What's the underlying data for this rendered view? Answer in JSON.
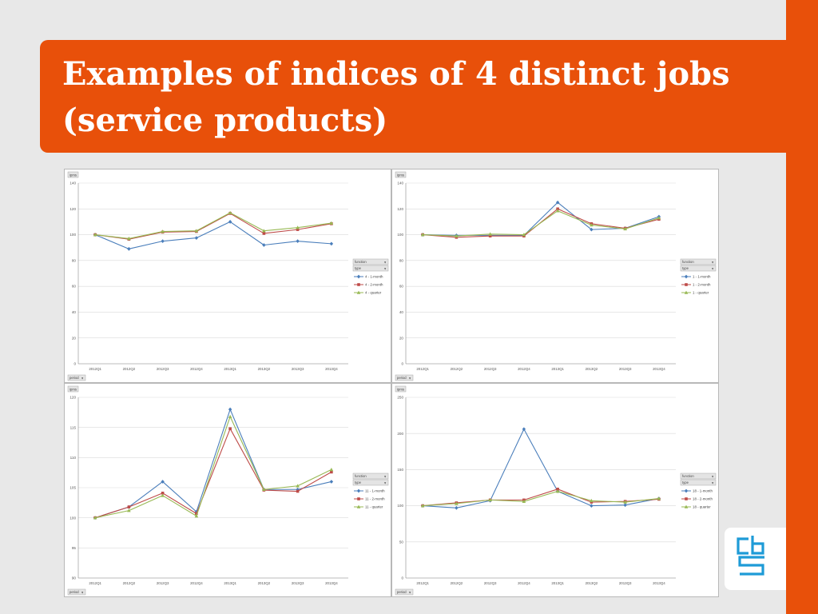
{
  "slide": {
    "title_line1": "Examples of indices of 4 distinct jobs",
    "title_line2": "(service products)",
    "brand_color": "#e8500a",
    "logo": "cbs-logo",
    "logo_color": "#1e9bd7"
  },
  "pivot": {
    "field_label": "ipms",
    "filter_function": "function",
    "filter_type": "type",
    "period_button": "period"
  },
  "chart_data": [
    {
      "type": "line",
      "categories": [
        "2012Q1",
        "2012Q2",
        "2012Q3",
        "2012Q4",
        "2013Q1",
        "2013Q2",
        "2013Q3",
        "2013Q4"
      ],
      "ylim": [
        0,
        140
      ],
      "yticks": [
        0,
        20,
        40,
        60,
        80,
        100,
        120,
        140
      ],
      "grid": true,
      "legend_position": "right",
      "series": [
        {
          "name": "4 - 1-month",
          "color": "#4a7ebb",
          "marker": "diamond",
          "values": [
            100,
            89,
            95,
            97.5,
            110,
            92,
            95,
            93
          ]
        },
        {
          "name": "4 - 2-month",
          "color": "#be4b48",
          "marker": "square",
          "values": [
            100,
            96.5,
            102,
            102.5,
            116.5,
            101,
            104,
            108.5
          ]
        },
        {
          "name": "4 - quarter",
          "color": "#98b954",
          "marker": "triangle",
          "values": [
            100,
            97,
            102.5,
            103,
            117,
            103,
            105.5,
            109
          ]
        }
      ]
    },
    {
      "type": "line",
      "categories": [
        "2012Q1",
        "2012Q2",
        "2012Q3",
        "2012Q4",
        "2013Q1",
        "2013Q2",
        "2013Q3",
        "2013Q4"
      ],
      "ylim": [
        0,
        140
      ],
      "yticks": [
        0,
        20,
        40,
        60,
        80,
        100,
        120,
        140
      ],
      "grid": true,
      "legend_position": "right",
      "series": [
        {
          "name": "1 - 1-month",
          "color": "#4a7ebb",
          "marker": "diamond",
          "values": [
            100,
            99.5,
            99.5,
            99.5,
            125,
            104,
            105,
            114
          ]
        },
        {
          "name": "1 - 2-month",
          "color": "#be4b48",
          "marker": "square",
          "values": [
            100,
            98,
            99,
            99,
            120,
            108.5,
            105,
            112
          ]
        },
        {
          "name": "1 - quarter",
          "color": "#98b954",
          "marker": "triangle",
          "values": [
            100,
            99,
            100.5,
            100,
            118.5,
            107.5,
            104.5,
            113
          ]
        }
      ]
    },
    {
      "type": "line",
      "categories": [
        "2012Q1",
        "2012Q2",
        "2012Q3",
        "2012Q4",
        "2013Q1",
        "2013Q2",
        "2013Q3",
        "2013Q4"
      ],
      "ylim": [
        90,
        120
      ],
      "yticks": [
        90,
        95,
        100,
        105,
        110,
        115,
        120
      ],
      "grid": true,
      "legend_position": "right",
      "series": [
        {
          "name": "11 - 1-month",
          "color": "#4a7ebb",
          "marker": "diamond",
          "values": [
            100,
            101.8,
            106,
            101,
            118,
            104.7,
            104.7,
            106
          ]
        },
        {
          "name": "11 - 2-month",
          "color": "#be4b48",
          "marker": "square",
          "values": [
            100,
            101.8,
            104.1,
            100.7,
            114.8,
            104.6,
            104.4,
            107.6
          ]
        },
        {
          "name": "11 - quarter",
          "color": "#98b954",
          "marker": "triangle",
          "values": [
            100,
            101.2,
            103.7,
            100.3,
            116.8,
            104.7,
            105.3,
            108
          ]
        }
      ]
    },
    {
      "type": "line",
      "categories": [
        "2012Q1",
        "2012Q2",
        "2012Q3",
        "2012Q4",
        "2013Q1",
        "2013Q2",
        "2013Q3",
        "2013Q4"
      ],
      "ylim": [
        0,
        250
      ],
      "yticks": [
        0,
        50,
        100,
        150,
        200,
        250
      ],
      "grid": true,
      "legend_position": "right",
      "series": [
        {
          "name": "18 - 1-month",
          "color": "#4a7ebb",
          "marker": "diamond",
          "values": [
            100,
            97,
            107,
            206,
            120,
            100,
            101,
            110
          ]
        },
        {
          "name": "18 - 2-month",
          "color": "#be4b48",
          "marker": "square",
          "values": [
            100,
            104,
            108,
            108,
            123,
            105,
            106,
            109
          ]
        },
        {
          "name": "18 - quarter",
          "color": "#98b954",
          "marker": "triangle",
          "values": [
            100,
            103,
            108,
            106,
            120,
            107,
            105,
            110
          ]
        }
      ]
    }
  ]
}
